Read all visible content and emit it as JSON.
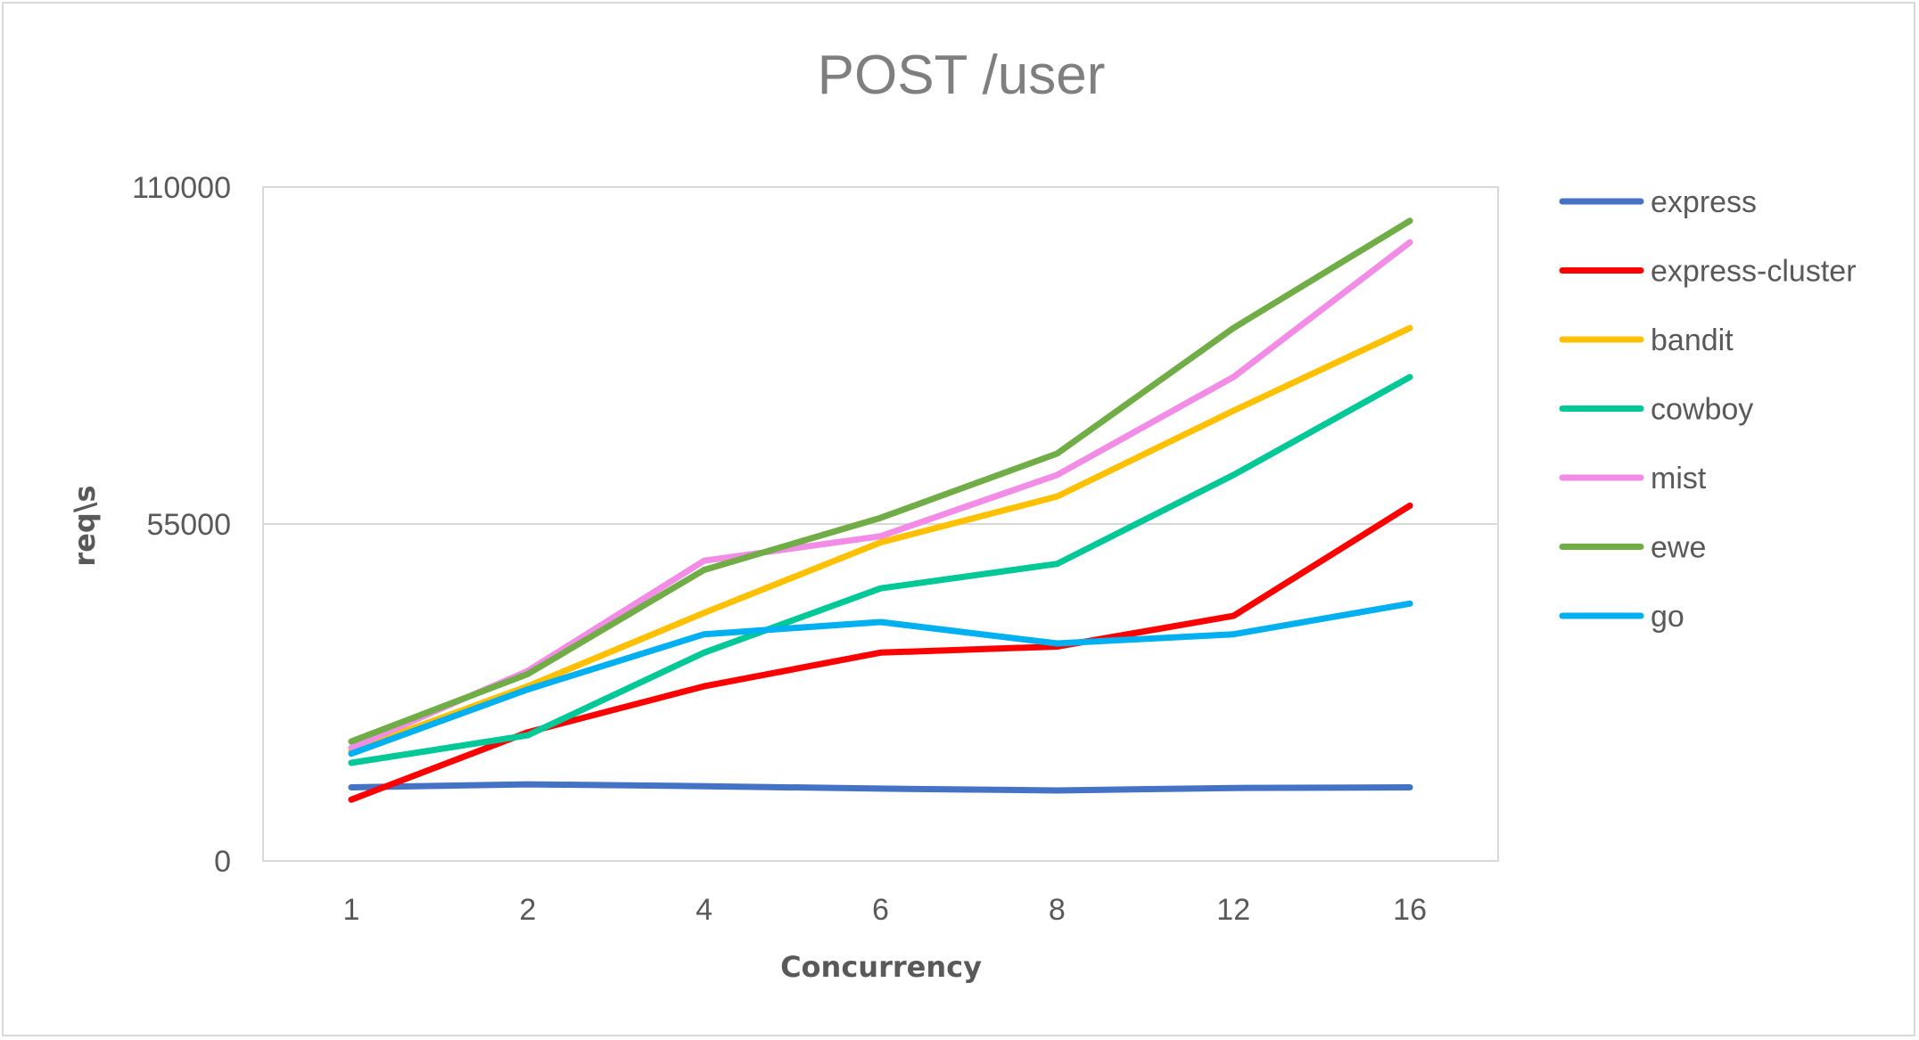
{
  "chart_data": {
    "type": "line",
    "title": "POST /user",
    "xlabel": "Concurrency",
    "ylabel": "req\\s",
    "categories": [
      "1",
      "2",
      "4",
      "6",
      "8",
      "12",
      "16"
    ],
    "ylim": [
      0,
      110000
    ],
    "yticks": [
      "0",
      "55000",
      "110000"
    ],
    "ytick_values": [
      0,
      55000,
      110000
    ],
    "grid": true,
    "legend_position": "right",
    "series": [
      {
        "name": "express",
        "color": "#4472c4",
        "values": [
          12000,
          12500,
          12200,
          11800,
          11500,
          11900,
          12000
        ]
      },
      {
        "name": "express-cluster",
        "color": "#ff0000",
        "values": [
          10000,
          21000,
          28500,
          34000,
          35000,
          40000,
          58000
        ]
      },
      {
        "name": "bandit",
        "color": "#ffc000",
        "values": [
          18000,
          28500,
          40500,
          52000,
          59500,
          73500,
          87000
        ]
      },
      {
        "name": "cowboy",
        "color": "#00c896",
        "values": [
          16000,
          20500,
          34000,
          44500,
          48500,
          63000,
          79000
        ]
      },
      {
        "name": "mist",
        "color": "#f28ce6",
        "values": [
          18500,
          31000,
          49000,
          53000,
          63000,
          79000,
          101000
        ]
      },
      {
        "name": "ewe",
        "color": "#70ad47",
        "values": [
          19500,
          30500,
          47500,
          56000,
          66500,
          87000,
          104500
        ]
      },
      {
        "name": "go",
        "color": "#00b0f0",
        "values": [
          17500,
          28000,
          37000,
          39000,
          35500,
          37000,
          42000
        ]
      }
    ]
  }
}
